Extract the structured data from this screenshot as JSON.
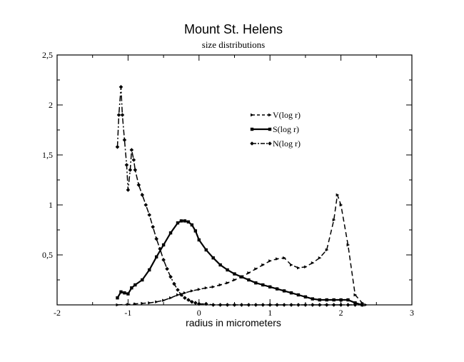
{
  "chart_data": {
    "type": "line",
    "title": "Mount St. Helens",
    "subtitle": "size distributions",
    "xlabel": "radius in micrometers",
    "ylabel": "",
    "xlim": [
      -2,
      3
    ],
    "ylim": [
      0,
      2.5
    ],
    "x_ticks": [
      -2,
      -1,
      0,
      1,
      2,
      3
    ],
    "x_tick_labels": [
      "-2",
      "-1",
      "0",
      "1",
      "2",
      "3"
    ],
    "y_ticks": [
      0.5,
      1,
      1.5,
      2,
      2.5
    ],
    "y_tick_labels": [
      "0,5",
      "1",
      "1,5",
      "2",
      "2,5"
    ],
    "grid": false,
    "legend_position": "upper-middle-right",
    "series": [
      {
        "name": "V(log r)",
        "line_style": "dashed",
        "marker": "small-arrow",
        "x": [
          -1.15,
          -1.0,
          -0.9,
          -0.8,
          -0.7,
          -0.6,
          -0.5,
          -0.4,
          -0.3,
          -0.2,
          -0.1,
          0.0,
          0.1,
          0.2,
          0.3,
          0.4,
          0.5,
          0.6,
          0.7,
          0.8,
          0.9,
          1.0,
          1.1,
          1.2,
          1.3,
          1.4,
          1.5,
          1.6,
          1.7,
          1.8,
          1.9,
          1.95,
          2.0,
          2.1,
          2.2,
          2.3,
          2.35
        ],
        "y": [
          0.0,
          0.005,
          0.01,
          0.015,
          0.02,
          0.03,
          0.045,
          0.07,
          0.1,
          0.12,
          0.14,
          0.155,
          0.17,
          0.18,
          0.2,
          0.22,
          0.25,
          0.28,
          0.32,
          0.36,
          0.4,
          0.44,
          0.46,
          0.47,
          0.4,
          0.37,
          0.38,
          0.42,
          0.47,
          0.55,
          0.85,
          1.1,
          1.0,
          0.6,
          0.1,
          0.02,
          0.0
        ]
      },
      {
        "name": "S(log r)",
        "line_style": "solid",
        "marker": "square",
        "x": [
          -1.15,
          -1.1,
          -1.05,
          -1.0,
          -0.95,
          -0.9,
          -0.8,
          -0.7,
          -0.6,
          -0.5,
          -0.4,
          -0.3,
          -0.25,
          -0.2,
          -0.15,
          -0.1,
          -0.05,
          0.0,
          0.1,
          0.2,
          0.3,
          0.4,
          0.5,
          0.6,
          0.7,
          0.8,
          0.9,
          1.0,
          1.1,
          1.2,
          1.3,
          1.4,
          1.5,
          1.6,
          1.7,
          1.8,
          1.9,
          2.0,
          2.1,
          2.2,
          2.3
        ],
        "y": [
          0.07,
          0.13,
          0.12,
          0.11,
          0.17,
          0.2,
          0.25,
          0.35,
          0.48,
          0.6,
          0.72,
          0.82,
          0.84,
          0.84,
          0.83,
          0.8,
          0.74,
          0.65,
          0.55,
          0.47,
          0.4,
          0.35,
          0.31,
          0.28,
          0.25,
          0.22,
          0.2,
          0.18,
          0.16,
          0.14,
          0.12,
          0.1,
          0.08,
          0.06,
          0.05,
          0.05,
          0.05,
          0.05,
          0.05,
          0.02,
          0.0
        ]
      },
      {
        "name": "N(log r)",
        "line_style": "dash-dot",
        "marker": "diamond",
        "x": [
          -1.15,
          -1.13,
          -1.1,
          -1.08,
          -1.05,
          -1.02,
          -1.0,
          -0.97,
          -0.95,
          -0.92,
          -0.9,
          -0.85,
          -0.8,
          -0.75,
          -0.7,
          -0.65,
          -0.6,
          -0.55,
          -0.5,
          -0.45,
          -0.4,
          -0.35,
          -0.3,
          -0.25,
          -0.2,
          -0.15,
          -0.1,
          -0.05,
          0.0,
          0.1,
          0.2,
          0.3,
          0.4,
          0.5,
          0.6,
          0.7,
          0.8,
          0.9,
          1.0,
          1.1,
          1.2,
          1.3,
          1.4,
          1.5,
          1.6,
          1.7,
          1.8,
          1.9,
          2.0,
          2.1,
          2.2,
          2.3
        ],
        "y": [
          1.58,
          1.9,
          2.18,
          1.9,
          1.65,
          1.4,
          1.15,
          1.35,
          1.55,
          1.45,
          1.35,
          1.2,
          1.1,
          1.0,
          0.9,
          0.78,
          0.66,
          0.56,
          0.45,
          0.36,
          0.28,
          0.21,
          0.15,
          0.1,
          0.07,
          0.05,
          0.03,
          0.02,
          0.01,
          0.01,
          0.0,
          0.0,
          0.0,
          0.0,
          0.0,
          0.0,
          0.0,
          0.0,
          0.0,
          0.0,
          0.0,
          0.0,
          0.0,
          0.0,
          0.0,
          0.0,
          0.0,
          0.0,
          0.0,
          0.0,
          0.0,
          0.0
        ]
      }
    ]
  }
}
